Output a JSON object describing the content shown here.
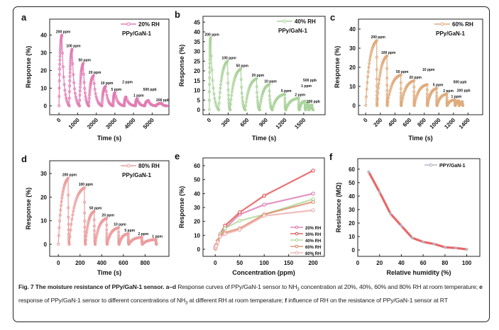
{
  "caption": [
    {
      "text": "Fig. 7 The moisture resistance of PPy/GaN-1 sensor. ",
      "bold": true
    },
    {
      "text": "a–d",
      "bold": true
    },
    {
      "text": " Response curves of PPy/GaN-1 sensor to NH",
      "bold": false
    },
    {
      "text": "3",
      "bold": false,
      "sub": true
    },
    {
      "text": " concentration at 20%, 40%, 60% and 80% RH at room temperature; ",
      "bold": false
    },
    {
      "text": "e",
      "bold": true
    },
    {
      "text": " response of PPy/GaN-1 sensor to different concentrations of NH",
      "bold": false
    },
    {
      "text": "3",
      "bold": false,
      "sub": true
    },
    {
      "text": " at different RH at room temperature; ",
      "bold": false
    },
    {
      "text": "f",
      "bold": true
    },
    {
      "text": " influence of RH on the resistance of PPy/GaN-1 sensor at RT",
      "bold": false
    }
  ],
  "chart_data": [
    {
      "panel": "a",
      "type": "line",
      "xlabel": "Time (s)",
      "ylabel": "Response (%)",
      "xlim": [
        -500,
        5900
      ],
      "ylim": [
        -5,
        49
      ],
      "xticks": [
        0,
        1000,
        2000,
        3000,
        4000,
        5000
      ],
      "yticks": [
        0,
        10,
        20,
        30,
        40
      ],
      "xticks_rotated": true,
      "legend": "20% RH",
      "sample": "PPy/GaN-1",
      "color": "#e27db3",
      "pulses": [
        {
          "label": "200 ppm",
          "start": 0,
          "peak_time": 150,
          "peak": 40,
          "end": 550
        },
        {
          "label": "100 ppm",
          "start": 550,
          "peak_time": 700,
          "peak": 32,
          "end": 1100
        },
        {
          "label": "50 ppm",
          "start": 1100,
          "peak_time": 1300,
          "peak": 24,
          "end": 1600
        },
        {
          "label": "20 ppm",
          "start": 1600,
          "peak_time": 1850,
          "peak": 17,
          "end": 2300
        },
        {
          "label": "10 ppm",
          "start": 2300,
          "peak_time": 2500,
          "peak": 11,
          "end": 2900
        },
        {
          "label": "5 ppm",
          "start": 2900,
          "peak_time": 3000,
          "peak": 7.5,
          "end": 3500
        },
        {
          "label": "2 ppm",
          "start": 3500,
          "peak_time": 3600,
          "peak": 5,
          "end": 4100
        },
        {
          "label": "1 ppm",
          "start": 4100,
          "peak_time": 4200,
          "peak": 4,
          "end": 4600
        },
        {
          "label": "500 ppb",
          "start": 4600,
          "peak_time": 4800,
          "peak": 3,
          "end": 5200
        },
        {
          "label": "200 ppb",
          "start": 5200,
          "peak_time": 5500,
          "peak": 1.5,
          "end": 5800
        }
      ]
    },
    {
      "panel": "b",
      "type": "line",
      "xlabel": "Time (s)",
      "ylabel": "Response (%)",
      "xlim": [
        -100,
        1840
      ],
      "ylim": [
        -2.5,
        48
      ],
      "xticks": [
        0,
        300,
        600,
        900,
        1200,
        1500
      ],
      "yticks": [
        0,
        5,
        10,
        15,
        20,
        25,
        30,
        35,
        40,
        45
      ],
      "xticks_rotated": true,
      "legend": "40% RH",
      "sample": "PPy/GaN-1",
      "color": "#abd39c",
      "pulses": [
        {
          "label": "200 ppm",
          "start": 0,
          "peak_time": 20,
          "peak": 37,
          "end": 150
        },
        {
          "label": "100 ppm",
          "start": 150,
          "peak_time": 290,
          "peak": 25,
          "end": 330
        },
        {
          "label": "50 ppm",
          "start": 330,
          "peak_time": 500,
          "peak": 21,
          "end": 570
        },
        {
          "label": "20 ppm",
          "start": 570,
          "peak_time": 750,
          "peak": 16,
          "end": 800
        },
        {
          "label": "10 ppm",
          "start": 800,
          "peak_time": 950,
          "peak": 13,
          "end": 1000
        },
        {
          "label": "5 ppm",
          "start": 1000,
          "peak_time": 1200,
          "peak": 8,
          "end": 1215
        },
        {
          "label": "2 ppm",
          "start": 1215,
          "peak_time": 1420,
          "peak": 6,
          "end": 1430
        },
        {
          "label": "1 ppm",
          "start": 1430,
          "peak_time": 1520,
          "peak": 4.5,
          "end": 1530
        },
        {
          "label": "500 ppb",
          "start": 1530,
          "peak_time": 1575,
          "peak": 3.5,
          "end": 1585
        },
        {
          "label": "200 ppb",
          "start": 1585,
          "peak_time": 1630,
          "peak": 2.5,
          "end": 1650
        }
      ]
    },
    {
      "panel": "c",
      "type": "line",
      "xlabel": "Time (s)",
      "ylabel": "Response (%)",
      "xlim": [
        -100,
        1600
      ],
      "ylim": [
        -4.8,
        45.2
      ],
      "xticks": [
        0,
        200,
        400,
        600,
        800,
        1000,
        1200,
        1400
      ],
      "yticks": [
        0,
        10,
        20,
        30,
        40
      ],
      "xticks_rotated": true,
      "legend": "60% RH",
      "sample": "PPy/GaN-1",
      "color": "#dfac7e",
      "pulses": [
        {
          "label": "200 ppm",
          "start": 0,
          "peak_time": 150,
          "peak": 34,
          "end": 155
        },
        {
          "label": "100 ppm",
          "start": 155,
          "peak_time": 290,
          "peak": 26,
          "end": 295
        },
        {
          "label": "50 ppm",
          "start": 295,
          "peak_time": 480,
          "peak": 16,
          "end": 485
        },
        {
          "label": "20 ppm",
          "start": 485,
          "peak_time": 660,
          "peak": 13,
          "end": 665
        },
        {
          "label": "10 ppm",
          "start": 665,
          "peak_time": 840,
          "peak": 11,
          "end": 845
        },
        {
          "label": "5 ppm",
          "start": 845,
          "peak_time": 970,
          "peak": 9,
          "end": 975
        },
        {
          "label": "2 ppm",
          "start": 975,
          "peak_time": 1110,
          "peak": 6,
          "end": 1115
        },
        {
          "label": "1 ppm",
          "start": 1115,
          "peak_time": 1220,
          "peak": 3,
          "end": 1225
        },
        {
          "label": "500 ppb",
          "start": 1225,
          "peak_time": 1270,
          "peak": 2.5,
          "end": 1280
        },
        {
          "label": "200 ppb",
          "start": 1280,
          "peak_time": 1320,
          "peak": 2,
          "end": 1330
        }
      ]
    },
    {
      "panel": "d",
      "type": "line",
      "xlabel": "Time (s)",
      "ylabel": "Response (%)",
      "xlim": [
        -80,
        1020
      ],
      "ylim": [
        -5.1,
        35.4
      ],
      "xticks": [
        0,
        200,
        400,
        600,
        800
      ],
      "yticks": [
        0,
        10,
        20,
        30
      ],
      "xticks_rotated": false,
      "legend": "80% RH",
      "sample": "PPy/GaN-1",
      "color": "#ec9d9d",
      "pulses": [
        {
          "label": "200 ppm",
          "start": 0,
          "peak_time": 90,
          "peak": 28,
          "end": 100
        },
        {
          "label": "100 ppm",
          "start": 100,
          "peak_time": 240,
          "peak": 24,
          "end": 250
        },
        {
          "label": "50 ppm",
          "start": 250,
          "peak_time": 330,
          "peak": 14,
          "end": 340
        },
        {
          "label": "20 ppm",
          "start": 340,
          "peak_time": 445,
          "peak": 11,
          "end": 450
        },
        {
          "label": "10 ppm",
          "start": 450,
          "peak_time": 555,
          "peak": 7,
          "end": 560
        },
        {
          "label": "5 ppm",
          "start": 560,
          "peak_time": 645,
          "peak": 4.5,
          "end": 650
        },
        {
          "label": "2 ppm",
          "start": 650,
          "peak_time": 770,
          "peak": 3,
          "end": 775
        },
        {
          "label": "1 ppm",
          "start": 775,
          "peak_time": 900,
          "peak": 2,
          "end": 905
        }
      ]
    },
    {
      "panel": "e",
      "type": "line",
      "xlabel": "Concentration (ppm)",
      "ylabel": "Response (%)",
      "xlim": [
        -25,
        223
      ],
      "ylim": [
        -5.1,
        65.6
      ],
      "xticks": [
        0,
        50,
        100,
        150,
        200
      ],
      "yticks": [
        0,
        10,
        20,
        30,
        40,
        50,
        60
      ],
      "legend_position": "bottom-right",
      "x": [
        0.2,
        0.5,
        1,
        2,
        5,
        10,
        20,
        50,
        100,
        200
      ],
      "series": [
        {
          "name": "20% RH",
          "color": "#d970ad",
          "values": [
            0.8,
            1.2,
            2,
            3,
            6,
            10,
            15,
            25,
            32,
            40
          ]
        },
        {
          "name": "30% RH",
          "color": "#e04444",
          "values": [
            0.8,
            1.2,
            2,
            3,
            6,
            11,
            17,
            26.5,
            38.5,
            56.5
          ]
        },
        {
          "name": "40% RH",
          "color": "#a9d490",
          "values": [
            0.8,
            1.2,
            2,
            3,
            6,
            11,
            15,
            20.5,
            25,
            36
          ]
        },
        {
          "name": "60% RH",
          "color": "#d9825f",
          "values": [
            0.7,
            1.1,
            1.8,
            2.8,
            6,
            10,
            12,
            15,
            25,
            34
          ]
        },
        {
          "name": "80% RH",
          "color": "#eba7a7",
          "values": [
            0.4,
            0.8,
            1.4,
            2.4,
            5,
            9,
            11,
            14,
            24,
            28
          ]
        }
      ]
    },
    {
      "panel": "f",
      "type": "line",
      "xlabel": "Relative humidity (%)",
      "ylabel": "Resistance (MΩ)",
      "xlim": [
        0,
        112
      ],
      "ylim": [
        -4.7,
        67.8
      ],
      "xticks": [
        0,
        20,
        40,
        60,
        80,
        100
      ],
      "yticks": [
        0,
        10,
        20,
        30,
        40,
        50,
        60
      ],
      "legend_position": "top-right",
      "series": [
        {
          "name": "PPY/GaN-1",
          "color": "#e03535",
          "marker_color": "#b9b9c8",
          "x": [
            10,
            20,
            30,
            40,
            50,
            60,
            70,
            80,
            90,
            100
          ],
          "values": [
            58,
            43,
            27,
            18,
            9,
            6,
            4.5,
            2,
            1.5,
            0.5
          ]
        }
      ]
    }
  ]
}
